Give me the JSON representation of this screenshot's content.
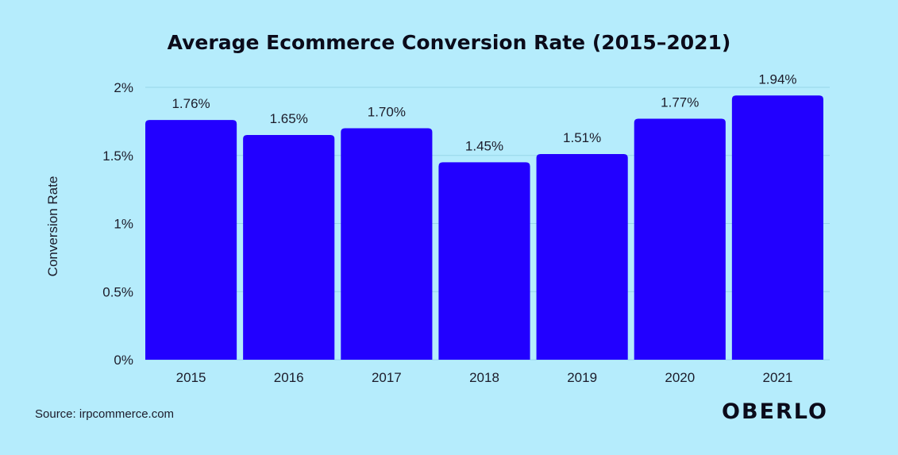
{
  "chart_data": {
    "type": "bar",
    "title": "Average Ecommerce Conversion Rate (2015–2021)",
    "xlabel": "",
    "ylabel": "Conversion Rate",
    "categories": [
      "2015",
      "2016",
      "2017",
      "2018",
      "2019",
      "2020",
      "2021"
    ],
    "values": [
      1.76,
      1.65,
      1.7,
      1.45,
      1.51,
      1.77,
      1.94
    ],
    "value_labels": [
      "1.76%",
      "1.65%",
      "1.70%",
      "1.45%",
      "1.51%",
      "1.77%",
      "1.94%"
    ],
    "ylim": [
      0,
      2
    ],
    "yticks": [
      0,
      0.5,
      1,
      1.5,
      2
    ],
    "ytick_labels": [
      "0%",
      "0.5%",
      "1%",
      "1.5%",
      "2%"
    ],
    "grid": true,
    "legend": "none"
  },
  "footer": {
    "source": "Source: irpcommerce.com",
    "logo_text": "OBERLO"
  },
  "colors": {
    "background": "#b5ecfc",
    "bar": "#2200ff",
    "text": "#1c1c2a"
  }
}
